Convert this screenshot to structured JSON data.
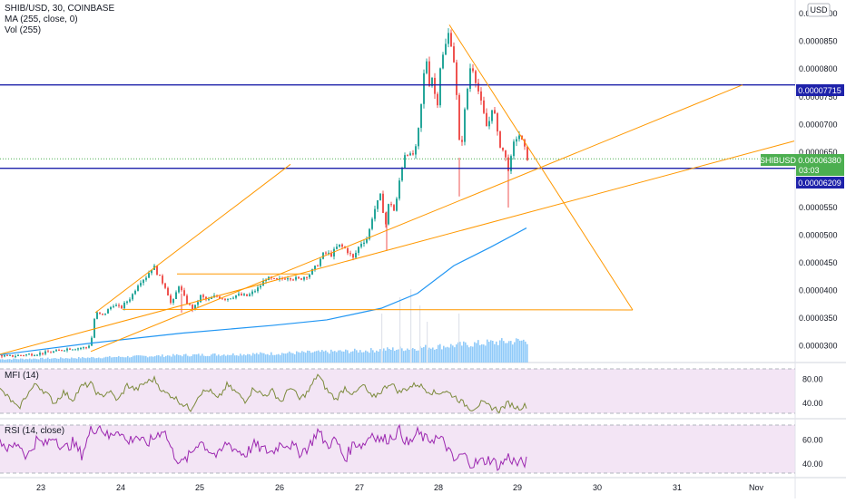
{
  "header": {
    "symbol_line": "SHIB/USD, 30, COINBASE",
    "ma_line": "MA (255, close, 0)",
    "vol_line": "Vol (255)",
    "currency": "USD"
  },
  "price_axis": {
    "ticks": [
      "0.00009000",
      "0.00008500",
      "0.00008000",
      "0.00007500",
      "0.00007000",
      "0.00006500",
      "0.00006000",
      "0.00005500",
      "0.00005000",
      "0.00004500",
      "0.00004000",
      "0.00003500",
      "0.00003000"
    ],
    "tick_values": [
      9e-05,
      8.5e-05,
      8e-05,
      7.5e-05,
      7e-05,
      6.5e-05,
      6e-05,
      5.5e-05,
      5e-05,
      4.5e-05,
      4e-05,
      3.5e-05,
      3e-05
    ],
    "tick_labels": [
      "0.0000900",
      "0.0000850",
      "0.0000800",
      "0.0000750",
      "0.0000700",
      "0.0000650",
      "0.0000600",
      "0.0000550",
      "0.0000500",
      "0.0000450",
      "0.0000400",
      "0.0000350",
      "0.0000300"
    ]
  },
  "badges": {
    "resistance": "0.00007715",
    "resistance_value": 7.715e-05,
    "symbol": "SHIBUSD",
    "last_price": "0.00006380",
    "last_value": 6.38e-05,
    "countdown": "03:03",
    "support": "0.00006209",
    "support_value": 6.209e-05
  },
  "mfi": {
    "label": "MFI (14)",
    "ticks": [
      "80.00",
      "40.00"
    ],
    "tick_values": [
      80,
      40
    ]
  },
  "rsi": {
    "label": "RSI (14, close)",
    "ticks": [
      "60.00",
      "40.00"
    ],
    "tick_values": [
      60,
      40
    ]
  },
  "time_axis": {
    "labels": [
      "23",
      "24",
      "25",
      "26",
      "27",
      "28",
      "29",
      "30",
      "31",
      "Nov"
    ]
  },
  "colors": {
    "up": "#26a69a",
    "down": "#ef5350",
    "ma": "#2196f3",
    "volume": "#90caf9",
    "hline": "#1e22aa",
    "trend": "#ff9800",
    "mfi_line": "#7c8a3c",
    "rsi_line": "#9c27b0",
    "osc_bg": "#f3e5f5",
    "symbol_badge": "#4caf50"
  },
  "chart_data": {
    "type": "candlestick",
    "x_labels": [
      "23",
      "24",
      "25",
      "26",
      "27",
      "28",
      "29",
      "30",
      "31",
      "Nov"
    ],
    "price_anchors": [
      [
        0,
        2.83e-05
      ],
      [
        8,
        2.81e-05
      ],
      [
        20,
        2.83e-05
      ],
      [
        40,
        2.86e-05
      ],
      [
        60,
        2.9e-05
      ],
      [
        72,
        2.95e-05
      ],
      [
        96,
        2.97e-05
      ],
      [
        100,
        3.15e-05
      ],
      [
        104,
        3.6e-05
      ],
      [
        112,
        3.55e-05
      ],
      [
        124,
        3.75e-05
      ],
      [
        132,
        3.68e-05
      ],
      [
        144,
        3.9e-05
      ],
      [
        152,
        4.15e-05
      ],
      [
        160,
        4.25e-05
      ],
      [
        168,
        4.45e-05
      ],
      [
        176,
        4.2e-05
      ],
      [
        182,
        4.05e-05
      ],
      [
        188,
        3.72e-05
      ],
      [
        196,
        4.1e-05
      ],
      [
        204,
        3.8e-05
      ],
      [
        212,
        3.65e-05
      ],
      [
        220,
        3.9e-05
      ],
      [
        228,
        3.82e-05
      ],
      [
        236,
        3.9e-05
      ],
      [
        248,
        3.85e-05
      ],
      [
        260,
        3.92e-05
      ],
      [
        272,
        3.9e-05
      ],
      [
        284,
        4.05e-05
      ],
      [
        292,
        4.22e-05
      ],
      [
        304,
        4.18e-05
      ],
      [
        316,
        4.25e-05
      ],
      [
        328,
        4.2e-05
      ],
      [
        340,
        4.3e-05
      ],
      [
        348,
        4.45e-05
      ],
      [
        356,
        4.68e-05
      ],
      [
        364,
        4.65e-05
      ],
      [
        372,
        4.82e-05
      ],
      [
        380,
        4.75e-05
      ],
      [
        388,
        4.58e-05
      ],
      [
        396,
        4.85e-05
      ],
      [
        404,
        4.95e-05
      ],
      [
        410,
        5.4e-05
      ],
      [
        418,
        5.7e-05
      ],
      [
        424,
        5.2e-05
      ],
      [
        428,
        5.65e-05
      ],
      [
        434,
        5.4e-05
      ],
      [
        440,
        6.1e-05
      ],
      [
        446,
        6.55e-05
      ],
      [
        452,
        6.4e-05
      ],
      [
        458,
        6.58e-05
      ],
      [
        464,
        7.5e-05
      ],
      [
        468,
        8.3e-05
      ],
      [
        472,
        7.75e-05
      ],
      [
        476,
        7.9e-05
      ],
      [
        480,
        7.2e-05
      ],
      [
        484,
        8.05e-05
      ],
      [
        488,
        8.3e-05
      ],
      [
        494,
        8.7e-05
      ],
      [
        500,
        8.05e-05
      ],
      [
        506,
        6.4e-05
      ],
      [
        512,
        7.4e-05
      ],
      [
        518,
        8.15e-05
      ],
      [
        524,
        7.75e-05
      ],
      [
        530,
        7.3e-05
      ],
      [
        536,
        6.9e-05
      ],
      [
        542,
        7.4e-05
      ],
      [
        548,
        6.7e-05
      ],
      [
        554,
        6.5e-05
      ],
      [
        560,
        6.15e-05
      ],
      [
        564,
        6.6e-05
      ],
      [
        570,
        6.85e-05
      ],
      [
        576,
        6.6e-05
      ],
      [
        580,
        6.4e-05
      ]
    ],
    "ma_anchors": [
      [
        0,
        2.84e-05
      ],
      [
        100,
        3.05e-05
      ],
      [
        200,
        3.23e-05
      ],
      [
        300,
        3.37e-05
      ],
      [
        360,
        3.47e-05
      ],
      [
        420,
        3.68e-05
      ],
      [
        460,
        3.95e-05
      ],
      [
        500,
        4.45e-05
      ],
      [
        540,
        4.78e-05
      ],
      [
        580,
        5.13e-05
      ]
    ],
    "volume_anchors": [
      [
        0,
        0.4
      ],
      [
        100,
        0.6
      ],
      [
        200,
        0.9
      ],
      [
        300,
        1.1
      ],
      [
        400,
        1.45
      ],
      [
        460,
        1.8
      ],
      [
        500,
        2.1
      ],
      [
        540,
        2.45
      ],
      [
        580,
        2.7
      ]
    ],
    "volume_max": 10,
    "mfi_anchors": [
      [
        0,
        62
      ],
      [
        10,
        48
      ],
      [
        20,
        30
      ],
      [
        30,
        55
      ],
      [
        40,
        72
      ],
      [
        50,
        58
      ],
      [
        60,
        40
      ],
      [
        70,
        58
      ],
      [
        80,
        46
      ],
      [
        90,
        68
      ],
      [
        100,
        72
      ],
      [
        110,
        50
      ],
      [
        120,
        60
      ],
      [
        130,
        44
      ],
      [
        140,
        70
      ],
      [
        150,
        62
      ],
      [
        160,
        74
      ],
      [
        170,
        80
      ],
      [
        180,
        58
      ],
      [
        190,
        52
      ],
      [
        200,
        40
      ],
      [
        210,
        30
      ],
      [
        220,
        56
      ],
      [
        230,
        62
      ],
      [
        240,
        46
      ],
      [
        250,
        70
      ],
      [
        260,
        58
      ],
      [
        270,
        44
      ],
      [
        280,
        66
      ],
      [
        290,
        52
      ],
      [
        300,
        60
      ],
      [
        310,
        42
      ],
      [
        320,
        68
      ],
      [
        330,
        46
      ],
      [
        340,
        60
      ],
      [
        350,
        88
      ],
      [
        360,
        62
      ],
      [
        370,
        46
      ],
      [
        380,
        66
      ],
      [
        390,
        54
      ],
      [
        400,
        70
      ],
      [
        410,
        48
      ],
      [
        420,
        60
      ],
      [
        430,
        74
      ],
      [
        440,
        58
      ],
      [
        450,
        66
      ],
      [
        460,
        72
      ],
      [
        470,
        62
      ],
      [
        480,
        56
      ],
      [
        490,
        60
      ],
      [
        500,
        52
      ],
      [
        510,
        40
      ],
      [
        520,
        30
      ],
      [
        530,
        40
      ],
      [
        540,
        34
      ],
      [
        550,
        28
      ],
      [
        560,
        40
      ],
      [
        570,
        32
      ],
      [
        580,
        36
      ]
    ],
    "rsi_anchors": [
      [
        0,
        60
      ],
      [
        10,
        52
      ],
      [
        20,
        58
      ],
      [
        30,
        46
      ],
      [
        40,
        60
      ],
      [
        50,
        56
      ],
      [
        60,
        64
      ],
      [
        70,
        52
      ],
      [
        80,
        58
      ],
      [
        90,
        48
      ],
      [
        100,
        68
      ],
      [
        110,
        72
      ],
      [
        120,
        62
      ],
      [
        130,
        70
      ],
      [
        140,
        58
      ],
      [
        150,
        64
      ],
      [
        160,
        56
      ],
      [
        170,
        62
      ],
      [
        180,
        70
      ],
      [
        190,
        50
      ],
      [
        200,
        40
      ],
      [
        210,
        48
      ],
      [
        220,
        60
      ],
      [
        230,
        52
      ],
      [
        240,
        46
      ],
      [
        250,
        58
      ],
      [
        260,
        52
      ],
      [
        270,
        48
      ],
      [
        280,
        56
      ],
      [
        290,
        52
      ],
      [
        300,
        50
      ],
      [
        310,
        58
      ],
      [
        320,
        56
      ],
      [
        330,
        50
      ],
      [
        340,
        54
      ],
      [
        350,
        68
      ],
      [
        360,
        56
      ],
      [
        370,
        60
      ],
      [
        380,
        44
      ],
      [
        390,
        58
      ],
      [
        400,
        56
      ],
      [
        410,
        66
      ],
      [
        420,
        60
      ],
      [
        430,
        62
      ],
      [
        440,
        68
      ],
      [
        450,
        56
      ],
      [
        460,
        66
      ],
      [
        470,
        60
      ],
      [
        480,
        62
      ],
      [
        490,
        58
      ],
      [
        500,
        42
      ],
      [
        510,
        48
      ],
      [
        520,
        40
      ],
      [
        530,
        42
      ],
      [
        540,
        44
      ],
      [
        550,
        38
      ],
      [
        560,
        46
      ],
      [
        570,
        40
      ],
      [
        580,
        42
      ]
    ],
    "trendlines": [
      [
        [
          0,
          2.85e-05
        ],
        [
          875,
          6.7e-05
        ]
      ],
      [
        [
          100,
          2.9e-05
        ],
        [
          818,
          7.715e-05
        ]
      ],
      [
        [
          105,
          3.6e-05
        ],
        [
          320,
          6.28e-05
        ]
      ],
      [
        [
          495,
          8.8e-05
        ],
        [
          697,
          3.65e-05
        ]
      ],
      [
        [
          135,
          3.66e-05
        ],
        [
          697,
          3.65e-05
        ]
      ],
      [
        [
          195,
          4.3e-05
        ],
        [
          340,
          4.3e-05
        ]
      ]
    ],
    "hlines": [
      7.715e-05,
      6.209e-05
    ],
    "ylim": [
      2.7e-05,
      9.15e-05
    ],
    "mfi_ylim": [
      20,
      100
    ],
    "rsi_ylim": [
      30,
      75
    ],
    "grid": false,
    "legend": "top-left"
  }
}
